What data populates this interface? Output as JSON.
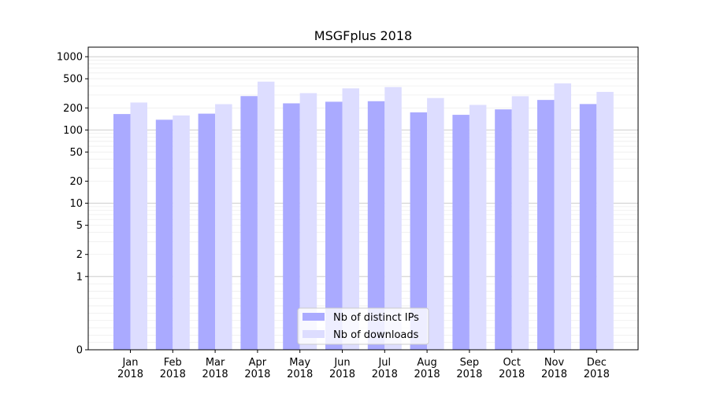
{
  "chart_data": {
    "type": "bar",
    "title": "MSGFplus 2018",
    "categories": [
      "Jan\n2018",
      "Feb\n2018",
      "Mar\n2018",
      "Apr\n2018",
      "May\n2018",
      "Jun\n2018",
      "Jul\n2018",
      "Aug\n2018",
      "Sep\n2018",
      "Oct\n2018",
      "Nov\n2018",
      "Dec\n2018"
    ],
    "series": [
      {
        "name": "Nb of distinct IPs",
        "color": "#aaaaff",
        "values": [
          165,
          138,
          167,
          290,
          231,
          243,
          247,
          174,
          161,
          191,
          257,
          226
        ]
      },
      {
        "name": "Nb of downloads",
        "color": "#ddddff",
        "values": [
          237,
          158,
          225,
          457,
          318,
          370,
          385,
          273,
          220,
          289,
          432,
          331
        ]
      }
    ],
    "yscale": "symlog",
    "ylim": [
      0,
      1350
    ],
    "yticks": [
      0,
      1,
      2,
      5,
      10,
      20,
      50,
      100,
      200,
      500,
      1000
    ],
    "ytick_labels": [
      "0",
      "1",
      "2",
      "5",
      "10",
      "20",
      "50",
      "100",
      "200",
      "500",
      "1000"
    ],
    "grid": true,
    "legend": {
      "placement": "bottom-center"
    },
    "xlabel": "",
    "ylabel": ""
  }
}
